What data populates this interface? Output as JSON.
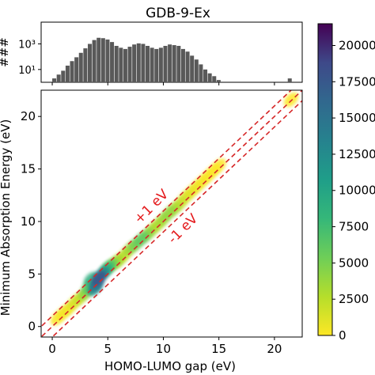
{
  "chart_data": [
    {
      "type": "bar",
      "panel": "histogram",
      "title": "GDB-9-Ex",
      "ylabel": "###",
      "yscale": "log",
      "yticks": [
        {
          "value": 1000,
          "label": "10³"
        },
        {
          "value": 10,
          "label": "10¹"
        }
      ],
      "ylim": [
        1,
        50000
      ],
      "xlim": [
        -1,
        22.5
      ],
      "bin_width": 0.2,
      "values": [
        {
          "x": 0.2,
          "y": 2
        },
        {
          "x": 0.6,
          "y": 4
        },
        {
          "x": 1.0,
          "y": 8
        },
        {
          "x": 1.4,
          "y": 20
        },
        {
          "x": 1.8,
          "y": 45
        },
        {
          "x": 2.2,
          "y": 90
        },
        {
          "x": 2.6,
          "y": 200
        },
        {
          "x": 3.0,
          "y": 450
        },
        {
          "x": 3.4,
          "y": 1000
        },
        {
          "x": 3.8,
          "y": 2000
        },
        {
          "x": 4.2,
          "y": 3000
        },
        {
          "x": 4.6,
          "y": 2800
        },
        {
          "x": 5.0,
          "y": 2200
        },
        {
          "x": 5.4,
          "y": 1400
        },
        {
          "x": 5.8,
          "y": 700
        },
        {
          "x": 6.2,
          "y": 500
        },
        {
          "x": 6.6,
          "y": 400
        },
        {
          "x": 7.0,
          "y": 600
        },
        {
          "x": 7.4,
          "y": 900
        },
        {
          "x": 7.8,
          "y": 1100
        },
        {
          "x": 8.2,
          "y": 1000
        },
        {
          "x": 8.6,
          "y": 700
        },
        {
          "x": 9.0,
          "y": 500
        },
        {
          "x": 9.4,
          "y": 400
        },
        {
          "x": 9.8,
          "y": 500
        },
        {
          "x": 10.2,
          "y": 700
        },
        {
          "x": 10.6,
          "y": 900
        },
        {
          "x": 11.0,
          "y": 800
        },
        {
          "x": 11.4,
          "y": 700
        },
        {
          "x": 11.8,
          "y": 400
        },
        {
          "x": 12.2,
          "y": 250
        },
        {
          "x": 12.6,
          "y": 120
        },
        {
          "x": 13.0,
          "y": 60
        },
        {
          "x": 13.4,
          "y": 25
        },
        {
          "x": 13.8,
          "y": 10
        },
        {
          "x": 14.2,
          "y": 5
        },
        {
          "x": 14.6,
          "y": 3
        },
        {
          "x": 15.0,
          "y": 1.5
        },
        {
          "x": 21.4,
          "y": 2
        }
      ]
    },
    {
      "type": "scatter",
      "panel": "main",
      "xlabel": "HOMO-LUMO gap (eV)",
      "ylabel": "Minimum Absorption Energy (eV)",
      "xlim": [
        -1,
        22.5
      ],
      "ylim": [
        -1,
        22.5
      ],
      "xticks": [
        0,
        5,
        10,
        15,
        20
      ],
      "yticks": [
        0,
        5,
        10,
        15,
        20
      ],
      "colormap": "viridis_r",
      "points": [
        {
          "x": 0.5,
          "y": 0.8,
          "c": 100
        },
        {
          "x": 1.0,
          "y": 1.3,
          "c": 300
        },
        {
          "x": 1.5,
          "y": 1.7,
          "c": 500
        },
        {
          "x": 2.0,
          "y": 2.3,
          "c": 1200
        },
        {
          "x": 2.5,
          "y": 2.7,
          "c": 2000
        },
        {
          "x": 3.0,
          "y": 3.2,
          "c": 4000
        },
        {
          "x": 3.3,
          "y": 3.8,
          "c": 6000
        },
        {
          "x": 3.5,
          "y": 4.5,
          "c": 9000
        },
        {
          "x": 3.8,
          "y": 3.6,
          "c": 12000
        },
        {
          "x": 4.0,
          "y": 4.0,
          "c": 15000
        },
        {
          "x": 4.2,
          "y": 4.6,
          "c": 18000
        },
        {
          "x": 4.5,
          "y": 5.0,
          "c": 13000
        },
        {
          "x": 4.8,
          "y": 5.3,
          "c": 9000
        },
        {
          "x": 5.0,
          "y": 5.6,
          "c": 7000
        },
        {
          "x": 5.3,
          "y": 5.8,
          "c": 5000
        },
        {
          "x": 5.7,
          "y": 6.1,
          "c": 3500
        },
        {
          "x": 6.0,
          "y": 6.3,
          "c": 2500
        },
        {
          "x": 6.5,
          "y": 6.8,
          "c": 2000
        },
        {
          "x": 7.0,
          "y": 7.4,
          "c": 3500
        },
        {
          "x": 7.5,
          "y": 7.8,
          "c": 5000
        },
        {
          "x": 8.0,
          "y": 8.3,
          "c": 6000
        },
        {
          "x": 8.5,
          "y": 8.7,
          "c": 4500
        },
        {
          "x": 9.0,
          "y": 9.2,
          "c": 3000
        },
        {
          "x": 9.5,
          "y": 9.7,
          "c": 2500
        },
        {
          "x": 10.0,
          "y": 10.2,
          "c": 3500
        },
        {
          "x": 10.5,
          "y": 10.8,
          "c": 4000
        },
        {
          "x": 11.0,
          "y": 11.2,
          "c": 3000
        },
        {
          "x": 11.5,
          "y": 11.7,
          "c": 2000
        },
        {
          "x": 12.0,
          "y": 12.3,
          "c": 1200
        },
        {
          "x": 12.5,
          "y": 12.8,
          "c": 700
        },
        {
          "x": 13.0,
          "y": 13.3,
          "c": 400
        },
        {
          "x": 13.5,
          "y": 13.8,
          "c": 200
        },
        {
          "x": 14.0,
          "y": 14.3,
          "c": 100
        },
        {
          "x": 14.5,
          "y": 14.8,
          "c": 50
        },
        {
          "x": 15.0,
          "y": 15.3,
          "c": 20
        },
        {
          "x": 21.5,
          "y": 21.6,
          "c": 10
        }
      ],
      "reference_lines": [
        {
          "label": "+1 eV",
          "offset": 1,
          "style": "dashed",
          "color": "#d62728"
        },
        {
          "label": "",
          "offset": 0,
          "style": "dashed",
          "color": "#d62728"
        },
        {
          "label": "-1 eV",
          "offset": -1,
          "style": "dashed",
          "color": "#d62728"
        }
      ]
    },
    {
      "type": "heatmap",
      "panel": "colorbar",
      "colormap": "viridis_r",
      "range": [
        0,
        21500
      ],
      "ticks": [
        0,
        2500,
        5000,
        7500,
        10000,
        12500,
        15000,
        17500,
        20000
      ],
      "tick_labels": [
        "0",
        "2500",
        "5000",
        "7500",
        "10000",
        "12500",
        "15000",
        "17500",
        "20000"
      ]
    }
  ]
}
